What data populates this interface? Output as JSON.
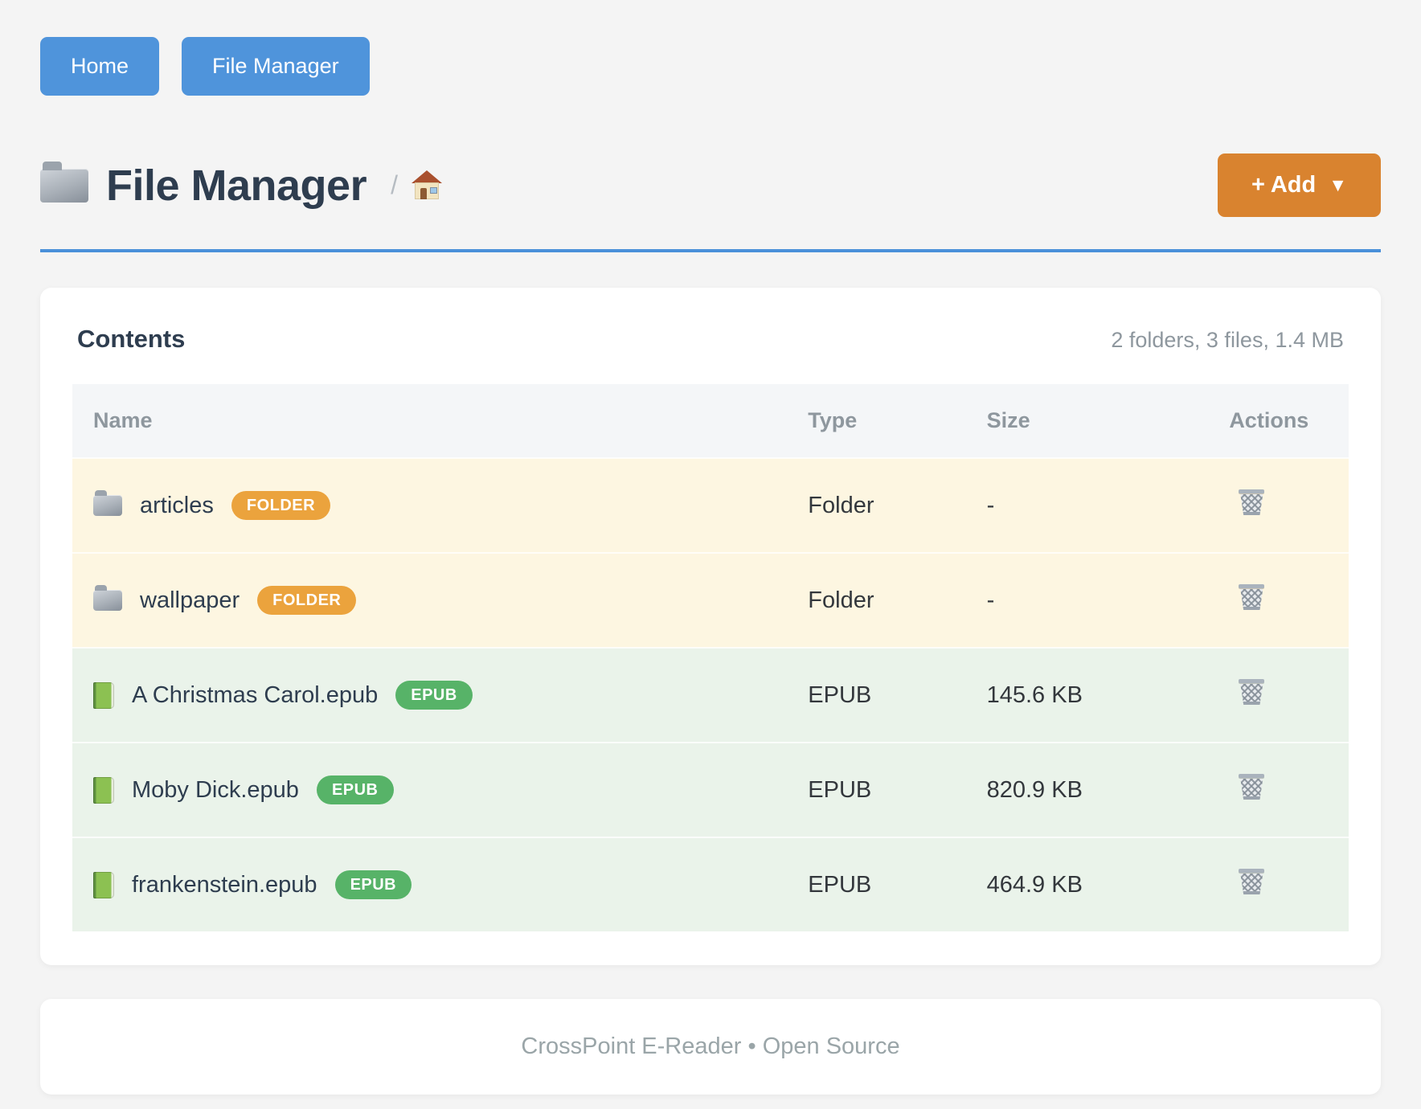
{
  "nav": {
    "buttons": [
      {
        "label": "Home"
      },
      {
        "label": "File Manager"
      }
    ]
  },
  "header": {
    "folder_icon": "folder-icon",
    "title": "File Manager",
    "breadcrumb_separator": "/",
    "home_icon": "house-icon",
    "add_button_label": "+ Add",
    "add_button_caret": "▼"
  },
  "card": {
    "title": "Contents",
    "stats": "2 folders, 3 files, 1.4 MB",
    "table": {
      "headers": [
        "Name",
        "Type",
        "Size",
        "Actions"
      ],
      "rows": [
        {
          "kind": "folder",
          "icon": "folder-icon",
          "name": "articles",
          "badge": "FOLDER",
          "type": "Folder",
          "size": "-",
          "action_icon": "trash-icon"
        },
        {
          "kind": "folder",
          "icon": "folder-icon",
          "name": "wallpaper",
          "badge": "FOLDER",
          "type": "Folder",
          "size": "-",
          "action_icon": "trash-icon"
        },
        {
          "kind": "epub",
          "icon": "book-icon",
          "name": "A Christmas Carol.epub",
          "badge": "EPUB",
          "type": "EPUB",
          "size": "145.6 KB",
          "action_icon": "trash-icon"
        },
        {
          "kind": "epub",
          "icon": "book-icon",
          "name": "Moby Dick.epub",
          "badge": "EPUB",
          "type": "EPUB",
          "size": "820.9 KB",
          "action_icon": "trash-icon"
        },
        {
          "kind": "epub",
          "icon": "book-icon",
          "name": "frankenstein.epub",
          "badge": "EPUB",
          "type": "EPUB",
          "size": "464.9 KB",
          "action_icon": "trash-icon"
        }
      ]
    }
  },
  "footer": {
    "text": "CrossPoint E-Reader • Open Source"
  },
  "colors": {
    "nav-blue": "#4f94db",
    "accent-blue": "#4a90d9",
    "add-orange": "#d9832f",
    "folder-badge": "#eba33d",
    "epub-badge": "#57b368",
    "folder-row-bg": "#fdf6e1",
    "file-row-bg": "#eaf3ea",
    "heading": "#2e3d4f",
    "muted": "#8e979e"
  }
}
